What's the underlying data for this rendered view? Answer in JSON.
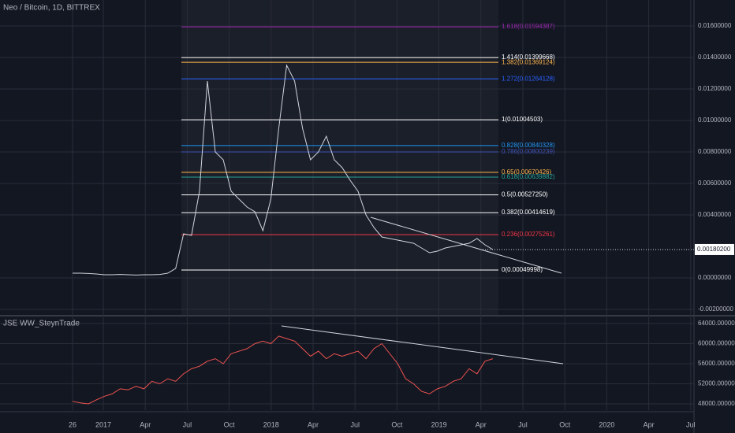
{
  "chart_data": [
    {
      "type": "line",
      "title": "Neo / Bitcoin, 1D, BITTREX",
      "color": "#d1d4dc",
      "values": [
        0.0003,
        0.0003,
        0.00028,
        0.00025,
        0.0002,
        0.0002,
        0.00022,
        0.0002,
        0.00018,
        0.0002,
        0.0002,
        0.00022,
        0.0003,
        0.0006,
        0.0028,
        0.0027,
        0.0055,
        0.0125,
        0.008,
        0.0075,
        0.0055,
        0.005,
        0.0045,
        0.0042,
        0.003,
        0.005,
        0.0095,
        0.0135,
        0.0125,
        0.0095,
        0.0075,
        0.008,
        0.009,
        0.0075,
        0.007,
        0.0062,
        0.0055,
        0.004,
        0.0032,
        0.0026,
        0.0025,
        0.0024,
        0.0023,
        0.0022,
        0.0019,
        0.0016,
        0.0017,
        0.0019,
        0.002,
        0.0021,
        0.0022,
        0.0025,
        0.0021,
        0.0018
      ],
      "ylim": [
        -0.00235,
        0.01765
      ],
      "yticks": [
        {
          "value": 0.016,
          "label": "0.01600000"
        },
        {
          "value": 0.014,
          "label": "0.01400000"
        },
        {
          "value": 0.012,
          "label": "0.01200000"
        },
        {
          "value": 0.01,
          "label": "0.01000000"
        },
        {
          "value": 0.008,
          "label": "0.00800000"
        },
        {
          "value": 0.006,
          "label": "0.00600000"
        },
        {
          "value": 0.004,
          "label": "0.00400000"
        },
        {
          "value": 0,
          "label": "0.00000000"
        },
        {
          "value": -0.002,
          "label": "-0.00200000"
        }
      ],
      "price_label": {
        "value": 0.001802,
        "label": "0.00180200"
      },
      "fib_levels": [
        {
          "value": 0.01594387,
          "label": "1.618(0.01594387)",
          "color": "#9c27b0"
        },
        {
          "value": 0.01399668,
          "label": "1.414(0.01399668)",
          "color": "#ffffff"
        },
        {
          "value": 0.01369124,
          "label": "1.382(0.01369124)",
          "color": "#ffb74d"
        },
        {
          "value": 0.01264128,
          "label": "1.272(0.01264128)",
          "color": "#2962ff"
        },
        {
          "value": 0.01004503,
          "label": "1(0.01004503)",
          "color": "#ffffff"
        },
        {
          "value": 0.00840328,
          "label": "0.828(0.00840328)",
          "color": "#2196f3"
        },
        {
          "value": 0.00800239,
          "label": "0.786(0.00800239)",
          "color": "#3f51b5"
        },
        {
          "value": 0.00670426,
          "label": "0.65(0.00670426)",
          "color": "#ffb74d"
        },
        {
          "value": 0.00639882,
          "label": "0.618(0.00639882)",
          "color": "#26a69a"
        },
        {
          "value": 0.0052725,
          "label": "0.5(0.00527250)",
          "color": "#ffffff"
        },
        {
          "value": 0.00414619,
          "label": "0.382(0.00414619)",
          "color": "#ffffff"
        },
        {
          "value": 0.00275261,
          "label": "0.236(0.00275261)",
          "color": "#f23645"
        },
        {
          "value": 0.00049998,
          "label": "0(0.00049998)",
          "color": "#ffffff"
        }
      ],
      "grid": true
    },
    {
      "type": "line",
      "title": "JSE WW_SteynTrade",
      "color": "#ef5350",
      "values": [
        48500,
        48200,
        48000,
        48800,
        49500,
        50000,
        51000,
        50800,
        51500,
        51000,
        52500,
        52000,
        53000,
        52500,
        54000,
        55000,
        55500,
        56500,
        57000,
        56000,
        58000,
        58500,
        59000,
        60000,
        60500,
        60000,
        61500,
        61000,
        60500,
        59000,
        57500,
        58500,
        57000,
        58000,
        57500,
        58000,
        58500,
        57000,
        59000,
        60000,
        58000,
        56000,
        53000,
        52000,
        50500,
        50000,
        51000,
        51500,
        52500,
        53000,
        55000,
        54000,
        56500,
        57000
      ],
      "ylim": [
        46745,
        65255
      ],
      "yticks": [
        {
          "value": 64000,
          "label": "64000.00000000"
        },
        {
          "value": 60000,
          "label": "60000.00000000"
        },
        {
          "value": 56000,
          "label": "56000.00000000"
        },
        {
          "value": 52000,
          "label": "52000.00000000"
        },
        {
          "value": 48000,
          "label": "48000.00000000"
        }
      ],
      "grid": true
    }
  ],
  "time_axis": {
    "labels": [
      "26",
      "2017",
      "Apr",
      "Jul",
      "Oct",
      "2018",
      "Apr",
      "Jul",
      "Oct",
      "2019",
      "Apr",
      "Jul",
      "Oct",
      "2020",
      "Apr",
      "Jul"
    ]
  }
}
